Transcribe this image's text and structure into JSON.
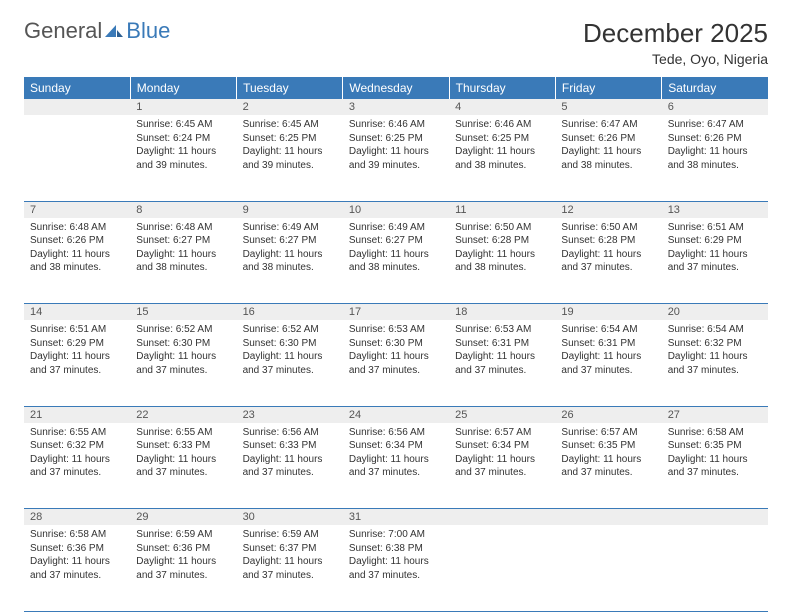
{
  "brand": {
    "part1": "General",
    "part2": "Blue"
  },
  "header": {
    "title": "December 2025",
    "location": "Tede, Oyo, Nigeria"
  },
  "colors": {
    "header_bg": "#3a7ab8",
    "header_text": "#ffffff",
    "daynum_bg": "#eeeeee",
    "row_border": "#3a7ab8",
    "body_text": "#333333"
  },
  "day_headers": [
    "Sunday",
    "Monday",
    "Tuesday",
    "Wednesday",
    "Thursday",
    "Friday",
    "Saturday"
  ],
  "weeks": [
    [
      null,
      {
        "n": "1",
        "sr": "Sunrise: 6:45 AM",
        "ss": "Sunset: 6:24 PM",
        "dl": "Daylight: 11 hours and 39 minutes."
      },
      {
        "n": "2",
        "sr": "Sunrise: 6:45 AM",
        "ss": "Sunset: 6:25 PM",
        "dl": "Daylight: 11 hours and 39 minutes."
      },
      {
        "n": "3",
        "sr": "Sunrise: 6:46 AM",
        "ss": "Sunset: 6:25 PM",
        "dl": "Daylight: 11 hours and 39 minutes."
      },
      {
        "n": "4",
        "sr": "Sunrise: 6:46 AM",
        "ss": "Sunset: 6:25 PM",
        "dl": "Daylight: 11 hours and 38 minutes."
      },
      {
        "n": "5",
        "sr": "Sunrise: 6:47 AM",
        "ss": "Sunset: 6:26 PM",
        "dl": "Daylight: 11 hours and 38 minutes."
      },
      {
        "n": "6",
        "sr": "Sunrise: 6:47 AM",
        "ss": "Sunset: 6:26 PM",
        "dl": "Daylight: 11 hours and 38 minutes."
      }
    ],
    [
      {
        "n": "7",
        "sr": "Sunrise: 6:48 AM",
        "ss": "Sunset: 6:26 PM",
        "dl": "Daylight: 11 hours and 38 minutes."
      },
      {
        "n": "8",
        "sr": "Sunrise: 6:48 AM",
        "ss": "Sunset: 6:27 PM",
        "dl": "Daylight: 11 hours and 38 minutes."
      },
      {
        "n": "9",
        "sr": "Sunrise: 6:49 AM",
        "ss": "Sunset: 6:27 PM",
        "dl": "Daylight: 11 hours and 38 minutes."
      },
      {
        "n": "10",
        "sr": "Sunrise: 6:49 AM",
        "ss": "Sunset: 6:27 PM",
        "dl": "Daylight: 11 hours and 38 minutes."
      },
      {
        "n": "11",
        "sr": "Sunrise: 6:50 AM",
        "ss": "Sunset: 6:28 PM",
        "dl": "Daylight: 11 hours and 38 minutes."
      },
      {
        "n": "12",
        "sr": "Sunrise: 6:50 AM",
        "ss": "Sunset: 6:28 PM",
        "dl": "Daylight: 11 hours and 37 minutes."
      },
      {
        "n": "13",
        "sr": "Sunrise: 6:51 AM",
        "ss": "Sunset: 6:29 PM",
        "dl": "Daylight: 11 hours and 37 minutes."
      }
    ],
    [
      {
        "n": "14",
        "sr": "Sunrise: 6:51 AM",
        "ss": "Sunset: 6:29 PM",
        "dl": "Daylight: 11 hours and 37 minutes."
      },
      {
        "n": "15",
        "sr": "Sunrise: 6:52 AM",
        "ss": "Sunset: 6:30 PM",
        "dl": "Daylight: 11 hours and 37 minutes."
      },
      {
        "n": "16",
        "sr": "Sunrise: 6:52 AM",
        "ss": "Sunset: 6:30 PM",
        "dl": "Daylight: 11 hours and 37 minutes."
      },
      {
        "n": "17",
        "sr": "Sunrise: 6:53 AM",
        "ss": "Sunset: 6:30 PM",
        "dl": "Daylight: 11 hours and 37 minutes."
      },
      {
        "n": "18",
        "sr": "Sunrise: 6:53 AM",
        "ss": "Sunset: 6:31 PM",
        "dl": "Daylight: 11 hours and 37 minutes."
      },
      {
        "n": "19",
        "sr": "Sunrise: 6:54 AM",
        "ss": "Sunset: 6:31 PM",
        "dl": "Daylight: 11 hours and 37 minutes."
      },
      {
        "n": "20",
        "sr": "Sunrise: 6:54 AM",
        "ss": "Sunset: 6:32 PM",
        "dl": "Daylight: 11 hours and 37 minutes."
      }
    ],
    [
      {
        "n": "21",
        "sr": "Sunrise: 6:55 AM",
        "ss": "Sunset: 6:32 PM",
        "dl": "Daylight: 11 hours and 37 minutes."
      },
      {
        "n": "22",
        "sr": "Sunrise: 6:55 AM",
        "ss": "Sunset: 6:33 PM",
        "dl": "Daylight: 11 hours and 37 minutes."
      },
      {
        "n": "23",
        "sr": "Sunrise: 6:56 AM",
        "ss": "Sunset: 6:33 PM",
        "dl": "Daylight: 11 hours and 37 minutes."
      },
      {
        "n": "24",
        "sr": "Sunrise: 6:56 AM",
        "ss": "Sunset: 6:34 PM",
        "dl": "Daylight: 11 hours and 37 minutes."
      },
      {
        "n": "25",
        "sr": "Sunrise: 6:57 AM",
        "ss": "Sunset: 6:34 PM",
        "dl": "Daylight: 11 hours and 37 minutes."
      },
      {
        "n": "26",
        "sr": "Sunrise: 6:57 AM",
        "ss": "Sunset: 6:35 PM",
        "dl": "Daylight: 11 hours and 37 minutes."
      },
      {
        "n": "27",
        "sr": "Sunrise: 6:58 AM",
        "ss": "Sunset: 6:35 PM",
        "dl": "Daylight: 11 hours and 37 minutes."
      }
    ],
    [
      {
        "n": "28",
        "sr": "Sunrise: 6:58 AM",
        "ss": "Sunset: 6:36 PM",
        "dl": "Daylight: 11 hours and 37 minutes."
      },
      {
        "n": "29",
        "sr": "Sunrise: 6:59 AM",
        "ss": "Sunset: 6:36 PM",
        "dl": "Daylight: 11 hours and 37 minutes."
      },
      {
        "n": "30",
        "sr": "Sunrise: 6:59 AM",
        "ss": "Sunset: 6:37 PM",
        "dl": "Daylight: 11 hours and 37 minutes."
      },
      {
        "n": "31",
        "sr": "Sunrise: 7:00 AM",
        "ss": "Sunset: 6:38 PM",
        "dl": "Daylight: 11 hours and 37 minutes."
      },
      null,
      null,
      null
    ]
  ]
}
